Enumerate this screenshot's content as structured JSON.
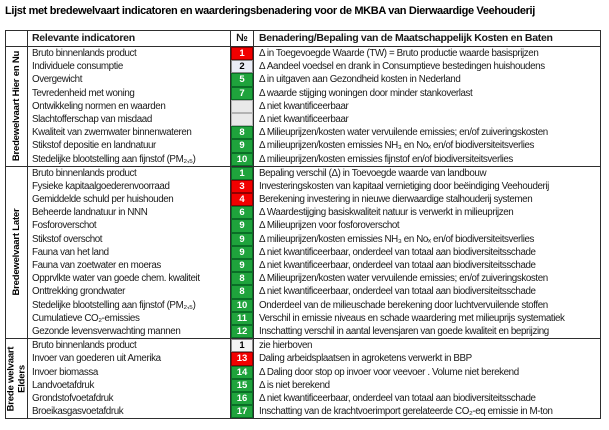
{
  "title": "Lijst met bredewelvaart indicatoren en waarderingsbenadering voor de MKBA van Dierwaardige Veehouderij",
  "headers": {
    "indicators": "Relevante indicatoren",
    "nr": "№",
    "benadering": "Benadering/Bepaling van de Maatschappelijk Kosten en Baten"
  },
  "badge_styles": {
    "red": {
      "bg": "#f20000",
      "border": "#8f0000",
      "text": "#ffffff"
    },
    "green": {
      "bg": "#1fa33c",
      "border": "#0a6e26",
      "text": "#ffffff"
    },
    "lightblue": {
      "bg": "#e9ecf6",
      "border": "#8a8a8a",
      "text": "#000000"
    },
    "white": {
      "bg": "#f4f4f4",
      "border": "#8a8a8a",
      "text": "#000000"
    },
    "gray": {
      "bg": "#e9e9e9",
      "border": "#b3b3b3",
      "text": "#000000"
    }
  },
  "sections": [
    {
      "label": "Bredewelvaart Hier en Nu",
      "rows": [
        {
          "indicator": "Bruto binnenlands product",
          "nr": "1",
          "color": "red",
          "valuation": "Δ in Toegevoegde Waarde (TW) = Bruto productie waarde basisprijzen"
        },
        {
          "indicator": "Individuele consumptie",
          "nr": "2",
          "color": "lightblue",
          "valuation": "Δ Aandeel voedsel en drank in Consumptieve bestedingen huishoudens"
        },
        {
          "indicator": "Overgewicht",
          "nr": "5",
          "color": "green",
          "valuation": "Δ in uitgaven aan Gezondheid kosten in Nederland"
        },
        {
          "indicator": "Tevredenheid met woning",
          "nr": "7",
          "color": "green",
          "valuation": "Δ waarde stijging woningen door minder stankoverlast"
        },
        {
          "indicator": "Ontwikkeling normen en waarden",
          "nr": "",
          "color": "gray",
          "valuation": "Δ niet kwantificeerbaar"
        },
        {
          "indicator": "Slachtofferschap van misdaad",
          "nr": "",
          "color": "gray",
          "valuation": "Δ niet kwantificeerbaar"
        },
        {
          "indicator": "Kwaliteit van zwemwater binnenwateren",
          "nr": "8",
          "color": "green",
          "valuation": "Δ Milieuprijzen/kosten water vervuilende emissies; en/of zuiveringskosten"
        },
        {
          "indicator": "Stikstof depositie en landnatuur",
          "nr": "9",
          "color": "green",
          "valuation": "Δ milieuprijzen/kosten emissies NH₃ en Noₓ en/of biodiversiteitsverlies"
        },
        {
          "indicator": "Stedelijke blootstelling aan fijnstof (PM₂,₅)",
          "nr": "10",
          "color": "green",
          "valuation": "Δ milieuprijzen/kosten emissies fijnstof en/of biodiversiteitsverlies"
        }
      ]
    },
    {
      "label": "Bredewelvaart Later",
      "rows": [
        {
          "indicator": "Bruto binnenlands product",
          "nr": "1",
          "color": "green",
          "valuation": "Bepaling verschil (Δ) in Toevoegde waarde van landbouw"
        },
        {
          "indicator": "Fysieke kapitaalgoederenvoorraad",
          "nr": "3",
          "color": "red",
          "valuation": "Investeringskosten van kapitaal vernietiging door beëindiging Veehouderij"
        },
        {
          "indicator": "Gemiddelde schuld per huishouden",
          "nr": "4",
          "color": "red",
          "valuation": "Berekening investering in nieuwe dierwaardige stalhouderij systemen"
        },
        {
          "indicator": "Beheerde landnatuur in NNN",
          "nr": "6",
          "color": "green",
          "valuation": "Δ Waardestijging basiskwaliteit natuur is verwerkt in milieuprijzen"
        },
        {
          "indicator": "Fosforoverschot",
          "nr": "9",
          "color": "green",
          "valuation": "Δ Milieuprijzen voor fosforoverschot"
        },
        {
          "indicator": "Stikstof overschot",
          "nr": "9",
          "color": "green",
          "valuation": "Δ milieuprijzen/kosten emissies NH₃ en Noₓ en/of biodiversiteitsverlies"
        },
        {
          "indicator": "Fauna van het land",
          "nr": "9",
          "color": "green",
          "valuation": "Δ niet kwantificeerbaar, onderdeel van totaal aan biodiversiteitsschade"
        },
        {
          "indicator": "Fauna van zoetwater en moeras",
          "nr": "9",
          "color": "green",
          "valuation": "Δ niet kwantificeerbaar, onderdeel van totaal aan biodiversiteitsschade"
        },
        {
          "indicator": "Opprvlkte water van goede chem. kwaliteit",
          "nr": "8",
          "color": "green",
          "valuation": "Δ Milieuprijzen/kosten water vervuilende emissies; en/of zuiveringskosten"
        },
        {
          "indicator": "Onttrekking grondwater",
          "nr": "8",
          "color": "green",
          "valuation": "Δ niet kwantificeerbaar, onderdeel van totaal aan biodiversiteitsschade"
        },
        {
          "indicator": "Stedelijke blootstelling aan fijnstof (PM₂,₅)",
          "nr": "10",
          "color": "green",
          "valuation": "Onderdeel van de milieuschade berekening door luchtvervuilende stoffen"
        },
        {
          "indicator": "Cumulatieve CO₂-emissies",
          "nr": "11",
          "color": "green",
          "valuation": "Verschil in emissie niveaus en schade waardering met milieuprijs systematiek"
        },
        {
          "indicator": "Gezonde levensverwachting mannen",
          "nr": "12",
          "color": "green",
          "valuation": "Inschatting verschil in aantal levensjaren van goede kwaliteit en beprijzing"
        }
      ]
    },
    {
      "label": "Brede welvaart Elders",
      "rows": [
        {
          "indicator": "Bruto binnenlands product",
          "nr": "1",
          "color": "white",
          "valuation": "zie hierboven"
        },
        {
          "indicator": "Invoer van goederen uit Amerika",
          "nr": "13",
          "color": "red",
          "valuation": "Daling arbeidsplaatsen in agroketens verwerkt in BBP"
        },
        {
          "indicator": "Invoer biomassa",
          "nr": "14",
          "color": "green",
          "valuation": "Δ Daling door stop op invoer voor veevoer . Volume niet berekend"
        },
        {
          "indicator": "Landvoetafdruk",
          "nr": "15",
          "color": "green",
          "valuation": "Δ is niet berekend"
        },
        {
          "indicator": "Grondstofvoetafdruk",
          "nr": "16",
          "color": "green",
          "valuation": "Δ niet kwantificeerbaar, onderdeel van totaal aan biodiversiteitsschade"
        },
        {
          "indicator": "Broeikasgasvoetafdruk",
          "nr": "17",
          "color": "green",
          "valuation": "Inschatting van de krachtvoerimport gerelateerde CO₂-eq emissie in M-ton"
        }
      ]
    }
  ]
}
